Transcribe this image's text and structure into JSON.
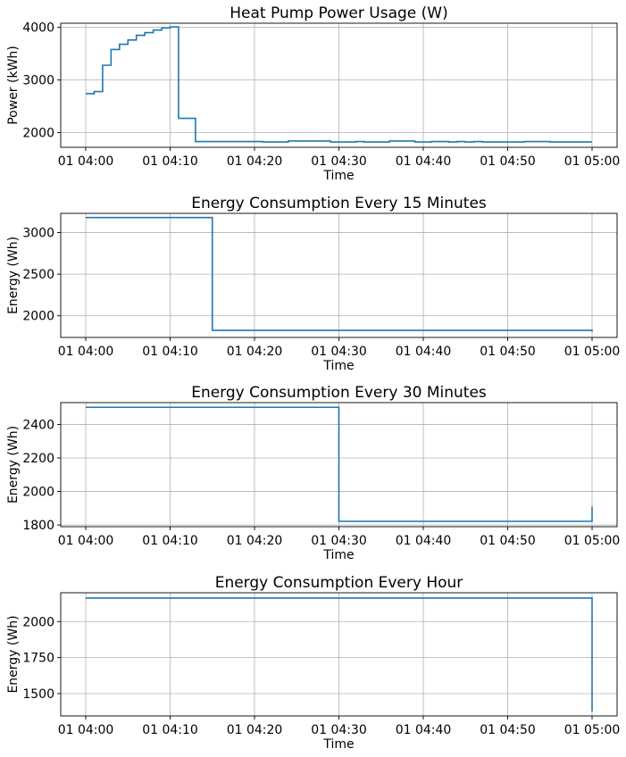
{
  "chart_data": [
    {
      "type": "line",
      "drawstyle": "steps-post",
      "title": "Heat Pump Power Usage (W)",
      "xlabel": "Time",
      "ylabel": "Power (kWh)",
      "grid": true,
      "xlim": [
        "01 04:00",
        "01 05:00"
      ],
      "ylim": [
        1720,
        4080
      ],
      "xticks": [
        "01 04:00",
        "01 04:10",
        "01 04:20",
        "01 04:30",
        "01 04:40",
        "01 04:50",
        "01 05:00"
      ],
      "yticks": [
        2000,
        3000,
        4000
      ],
      "series": [
        {
          "color": "#1f77b4",
          "x": [
            "01 04:00",
            "01 04:01",
            "01 04:02",
            "01 04:03",
            "01 04:04",
            "01 04:05",
            "01 04:06",
            "01 04:07",
            "01 04:08",
            "01 04:09",
            "01 04:10",
            "01 04:11",
            "01 04:13",
            "01 04:21",
            "01 04:24",
            "01 04:29",
            "01 04:32",
            "01 04:33",
            "01 04:36",
            "01 04:39",
            "01 04:41",
            "01 04:43",
            "01 04:44",
            "01 04:45",
            "01 04:46",
            "01 04:47",
            "01 04:48",
            "01 04:52",
            "01 04:55",
            "01 05:00"
          ],
          "values": [
            2740,
            2780,
            3280,
            3580,
            3680,
            3760,
            3850,
            3900,
            3950,
            3990,
            4010,
            2270,
            1830,
            1820,
            1840,
            1820,
            1830,
            1820,
            1840,
            1820,
            1830,
            1820,
            1830,
            1820,
            1830,
            1820,
            1820,
            1830,
            1820,
            1820
          ]
        }
      ]
    },
    {
      "type": "line",
      "drawstyle": "steps-post",
      "title": "Energy Consumption Every 15 Minutes",
      "xlabel": "Time",
      "ylabel": "Energy (Wh)",
      "grid": true,
      "xlim": [
        "01 04:00",
        "01 05:00"
      ],
      "ylim": [
        1740,
        3230
      ],
      "xticks": [
        "01 04:00",
        "01 04:10",
        "01 04:20",
        "01 04:30",
        "01 04:40",
        "01 04:50",
        "01 05:00"
      ],
      "yticks": [
        2000,
        2500,
        3000
      ],
      "series": [
        {
          "color": "#1f77b4",
          "x": [
            "01 04:00",
            "01 04:15",
            "01 04:30",
            "01 04:45",
            "01 05:00"
          ],
          "values": [
            3180,
            1825,
            1825,
            1825,
            1810
          ]
        }
      ]
    },
    {
      "type": "line",
      "drawstyle": "steps-post",
      "title": "Energy Consumption Every 30 Minutes",
      "xlabel": "Time",
      "ylabel": "Energy (Wh)",
      "grid": true,
      "xlim": [
        "01 04:00",
        "01 05:00"
      ],
      "ylim": [
        1790,
        2530
      ],
      "xticks": [
        "01 04:00",
        "01 04:10",
        "01 04:20",
        "01 04:30",
        "01 04:40",
        "01 04:50",
        "01 05:00"
      ],
      "yticks": [
        1800,
        2000,
        2200,
        2400
      ],
      "series": [
        {
          "color": "#1f77b4",
          "x": [
            "01 04:00",
            "01 04:30",
            "01 05:00"
          ],
          "values": [
            2502,
            1822,
            1910
          ]
        }
      ]
    },
    {
      "type": "line",
      "drawstyle": "steps-post",
      "title": "Energy Consumption Every Hour",
      "xlabel": "Time",
      "ylabel": "Energy (Wh)",
      "grid": true,
      "xlim": [
        "01 04:00",
        "01 05:00"
      ],
      "ylim": [
        1345,
        2200
      ],
      "xticks": [
        "01 04:00",
        "01 04:10",
        "01 04:20",
        "01 04:30",
        "01 04:40",
        "01 04:50",
        "01 05:00"
      ],
      "yticks": [
        1500,
        1750,
        2000
      ],
      "series": [
        {
          "color": "#1f77b4",
          "x": [
            "01 04:00",
            "01 05:00"
          ],
          "values": [
            2163,
            1375
          ]
        }
      ]
    }
  ]
}
